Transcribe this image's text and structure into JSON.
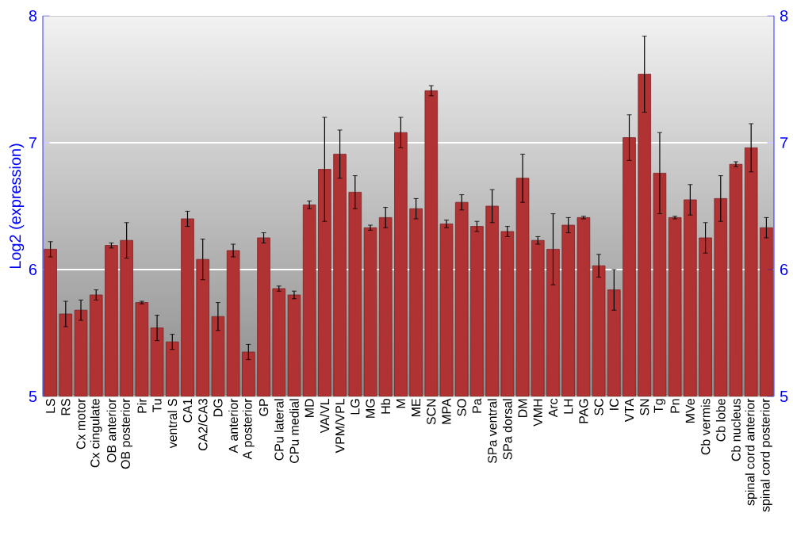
{
  "chart_data": {
    "type": "bar",
    "ylabel": "Log2 (expression)",
    "categories": [
      "LS",
      "RS",
      "Cx motor",
      "Cx cingulate",
      "OB anterior",
      "OB posterior",
      "Pir",
      "Tu",
      "ventral S",
      "CA1",
      "CA2/CA3",
      "DG",
      "A anterior",
      "A posterior",
      "GP",
      "CPu lateral",
      "CPu medial",
      "MD",
      "VA/VL",
      "VPM/VPL",
      "LG",
      "MG",
      "Hb",
      "M",
      "ME",
      "SCN",
      "MPA",
      "SO",
      "Pa",
      "SPa ventral",
      "SPa dorsal",
      "DM",
      "VMH",
      "Arc",
      "LH",
      "PAG",
      "SC",
      "IC",
      "VTA",
      "SN",
      "Tg",
      "Pn",
      "MVe",
      "Cb vermis",
      "Cb lobe",
      "Cb nucleus",
      "spinal cord anterior",
      "spinal cord posterior"
    ],
    "values": [
      6.16,
      5.65,
      5.68,
      5.8,
      6.19,
      6.23,
      5.74,
      5.54,
      5.43,
      6.4,
      6.08,
      5.63,
      6.15,
      5.35,
      6.25,
      5.85,
      5.8,
      6.51,
      6.79,
      6.91,
      6.61,
      6.33,
      6.41,
      7.08,
      6.48,
      7.41,
      6.36,
      6.53,
      6.34,
      6.5,
      6.3,
      6.72,
      6.23,
      6.16,
      6.35,
      6.41,
      6.03,
      5.84,
      7.04,
      7.54,
      6.76,
      6.41,
      6.55,
      6.25,
      6.56,
      6.83,
      6.96,
      6.33
    ],
    "errors": [
      0.06,
      0.1,
      0.08,
      0.04,
      0.02,
      0.14,
      0.01,
      0.1,
      0.06,
      0.06,
      0.16,
      0.11,
      0.05,
      0.06,
      0.04,
      0.02,
      0.03,
      0.03,
      0.41,
      0.19,
      0.13,
      0.02,
      0.08,
      0.12,
      0.08,
      0.04,
      0.03,
      0.06,
      0.04,
      0.13,
      0.04,
      0.19,
      0.03,
      0.28,
      0.06,
      0.01,
      0.09,
      0.16,
      0.18,
      0.3,
      0.32,
      0.01,
      0.12,
      0.12,
      0.18,
      0.02,
      0.19,
      0.08
    ],
    "color": "#b03232",
    "ylim": [
      5,
      8
    ],
    "yticks": [
      5,
      6,
      7,
      8
    ],
    "y2lim": [
      5,
      8
    ],
    "y2ticks": [
      5,
      6,
      7,
      8
    ],
    "grid": "y"
  }
}
